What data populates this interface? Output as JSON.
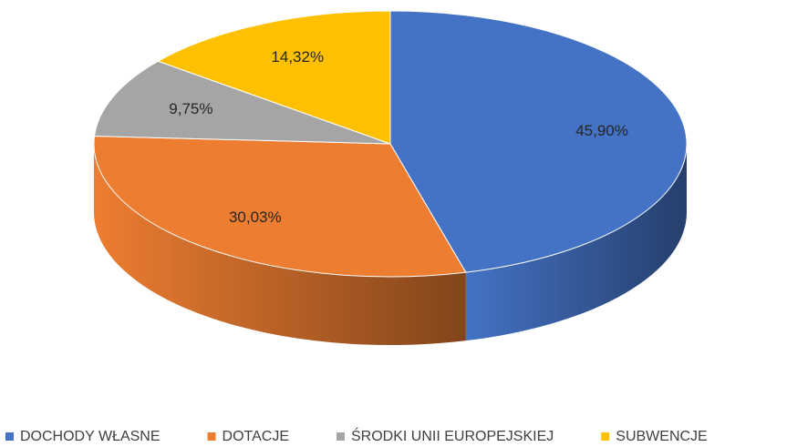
{
  "chart_data": {
    "type": "pie",
    "categories": [
      "DOCHODY WŁASNE",
      "DOTACJE",
      "ŚRODKI UNII EUROPEJSKIEJ",
      "SUBWENCJE"
    ],
    "values": [
      45.9,
      30.03,
      9.75,
      14.32
    ],
    "value_labels": [
      "45,90%",
      "30,03%",
      "9,75%",
      "14,32%"
    ],
    "colors": [
      "#4472c4",
      "#ed7d31",
      "#a5a5a5",
      "#ffc000"
    ],
    "legend": "bottom"
  }
}
